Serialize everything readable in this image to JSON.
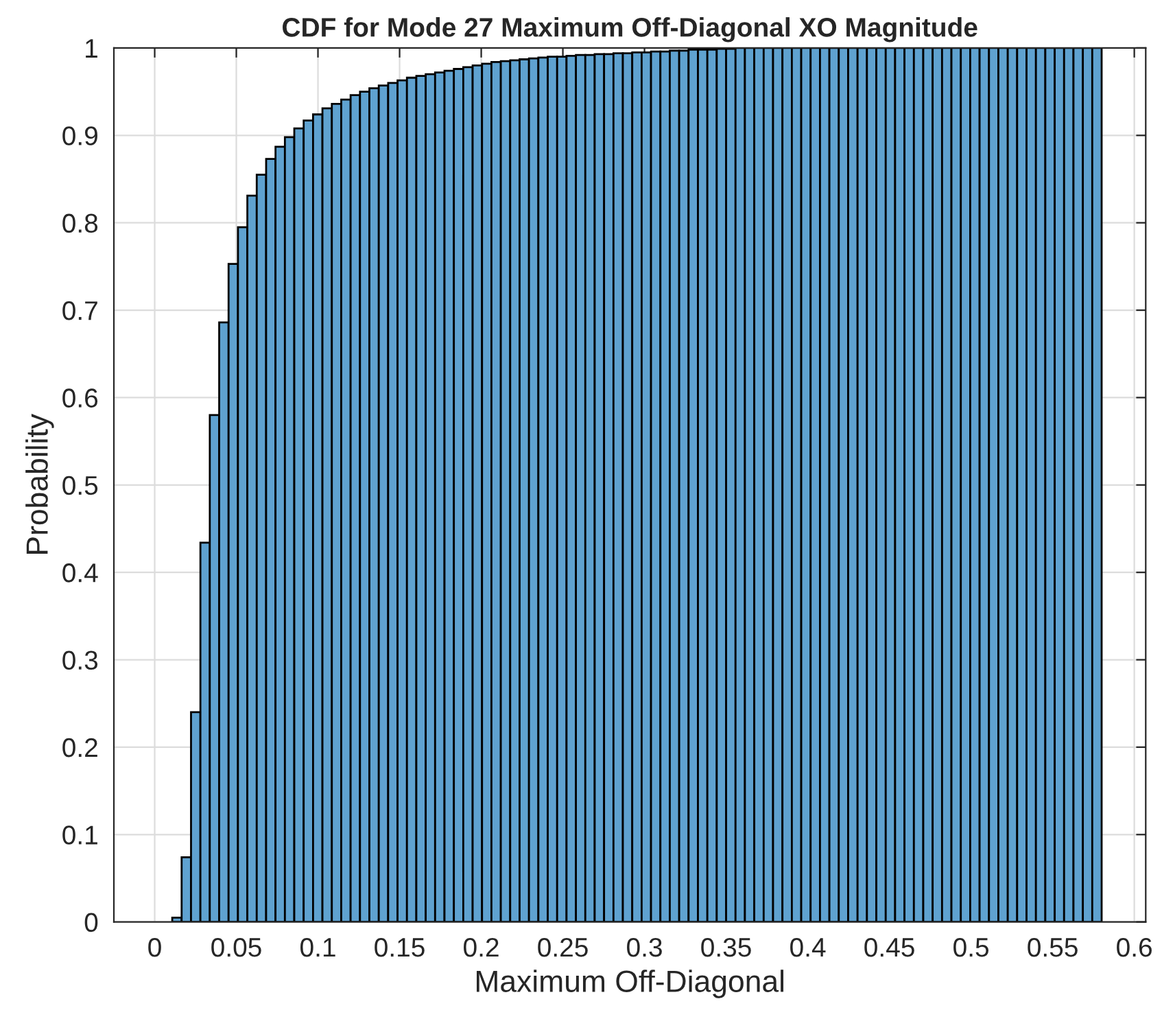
{
  "chart_data": {
    "type": "histogram",
    "title": "CDF for Mode 27 Maximum Off-Diagonal XO Magnitude",
    "xlabel": "Maximum Off-Diagonal",
    "ylabel": "Probability",
    "bins": [
      0.005,
      0.01075,
      0.0165,
      0.02225,
      0.028,
      0.03375,
      0.0395,
      0.04525,
      0.051,
      0.05675,
      0.0625,
      0.06825,
      0.074,
      0.07975,
      0.0855,
      0.09125,
      0.097,
      0.10275,
      0.1085,
      0.11425,
      0.12,
      0.12575,
      0.1315,
      0.13725,
      0.143,
      0.14875,
      0.1545,
      0.16025,
      0.166,
      0.17175,
      0.1775,
      0.18325,
      0.189,
      0.19475,
      0.2005,
      0.20625,
      0.212,
      0.21775,
      0.2235,
      0.22925,
      0.235,
      0.24075,
      0.2465,
      0.25225,
      0.258,
      0.26375,
      0.2695,
      0.27525,
      0.281,
      0.28675,
      0.2925,
      0.29825,
      0.304,
      0.30975,
      0.3155,
      0.32125,
      0.327,
      0.33275,
      0.3385,
      0.34425,
      0.35,
      0.35575,
      0.3615,
      0.36725,
      0.373,
      0.37875,
      0.3845,
      0.39025,
      0.396,
      0.40175,
      0.4075,
      0.41325,
      0.419,
      0.42475,
      0.4305,
      0.43625,
      0.442,
      0.44775,
      0.4535,
      0.45925,
      0.465,
      0.47075,
      0.4765,
      0.48225,
      0.488,
      0.49375,
      0.4995,
      0.50525,
      0.511,
      0.51675,
      0.5225,
      0.52825,
      0.534,
      0.53975,
      0.5455,
      0.55125,
      0.557,
      0.56275,
      0.5685,
      0.57425,
      0.58
    ],
    "values": [
      null,
      0.005,
      0.074,
      0.24,
      0.434,
      0.58,
      0.686,
      0.753,
      0.795,
      0.831,
      0.855,
      0.873,
      0.887,
      0.898,
      0.908,
      0.917,
      0.924,
      0.931,
      0.936,
      0.941,
      0.946,
      0.95,
      0.954,
      0.957,
      0.96,
      0.963,
      0.966,
      0.968,
      0.97,
      0.972,
      0.974,
      0.976,
      0.978,
      0.98,
      0.982,
      0.984,
      0.985,
      0.986,
      0.987,
      0.988,
      0.989,
      0.99,
      0.99,
      0.991,
      0.992,
      0.992,
      0.993,
      0.993,
      0.994,
      0.994,
      0.995,
      0.995,
      0.996,
      0.996,
      0.997,
      0.997,
      0.998,
      0.998,
      0.998,
      0.999,
      0.999,
      1,
      1,
      1,
      1,
      1,
      1,
      1,
      1,
      1,
      1,
      1,
      1,
      1,
      1,
      1,
      1,
      1,
      1,
      1,
      1,
      1,
      1,
      1,
      1,
      1,
      1,
      1,
      1,
      1,
      1,
      1,
      1,
      1,
      1,
      1,
      1,
      1,
      1,
      1
    ],
    "color": "#5fa2d0",
    "xlim": [
      -0.025,
      0.607
    ],
    "ylim": [
      0,
      1
    ],
    "xticks": [
      0,
      0.05,
      0.1,
      0.15,
      0.2,
      0.25,
      0.3,
      0.35,
      0.4,
      0.45,
      0.5,
      0.55,
      0.6
    ],
    "yticks": [
      0,
      0.1,
      0.2,
      0.3,
      0.4,
      0.5,
      0.6,
      0.7,
      0.8,
      0.9,
      1
    ],
    "grid": true
  }
}
